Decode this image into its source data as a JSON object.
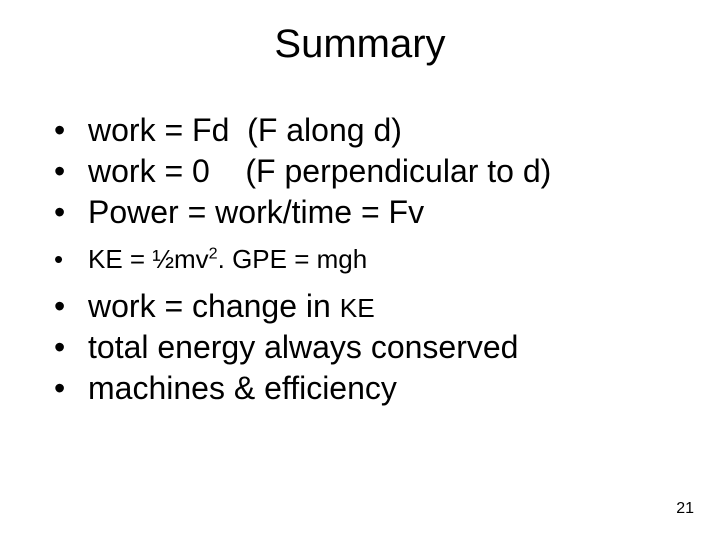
{
  "slide": {
    "title": "Summary",
    "page_number": "21",
    "background_color": "#ffffff",
    "text_color": "#000000",
    "font_family": "Arial",
    "title_fontsize": 40,
    "body_fontsize": 32,
    "small_fontsize": 26,
    "pagenum_fontsize": 16,
    "bullets": [
      {
        "size": "normal",
        "text": "work = Fd  (F along d)"
      },
      {
        "size": "normal",
        "text": "work = 0    (F perpendicular to d)"
      },
      {
        "size": "normal",
        "text": "Power = work/time = Fv"
      },
      {
        "size": "small",
        "html": "KE = ½mv<span class=\"sup\">2</span>. GPE = mgh"
      },
      {
        "size": "normal",
        "html": "work = change in <span class=\"sc\">KE</span>"
      },
      {
        "size": "normal",
        "text": "total energy always conserved"
      },
      {
        "size": "normal",
        "text": "machines & efficiency"
      }
    ]
  }
}
